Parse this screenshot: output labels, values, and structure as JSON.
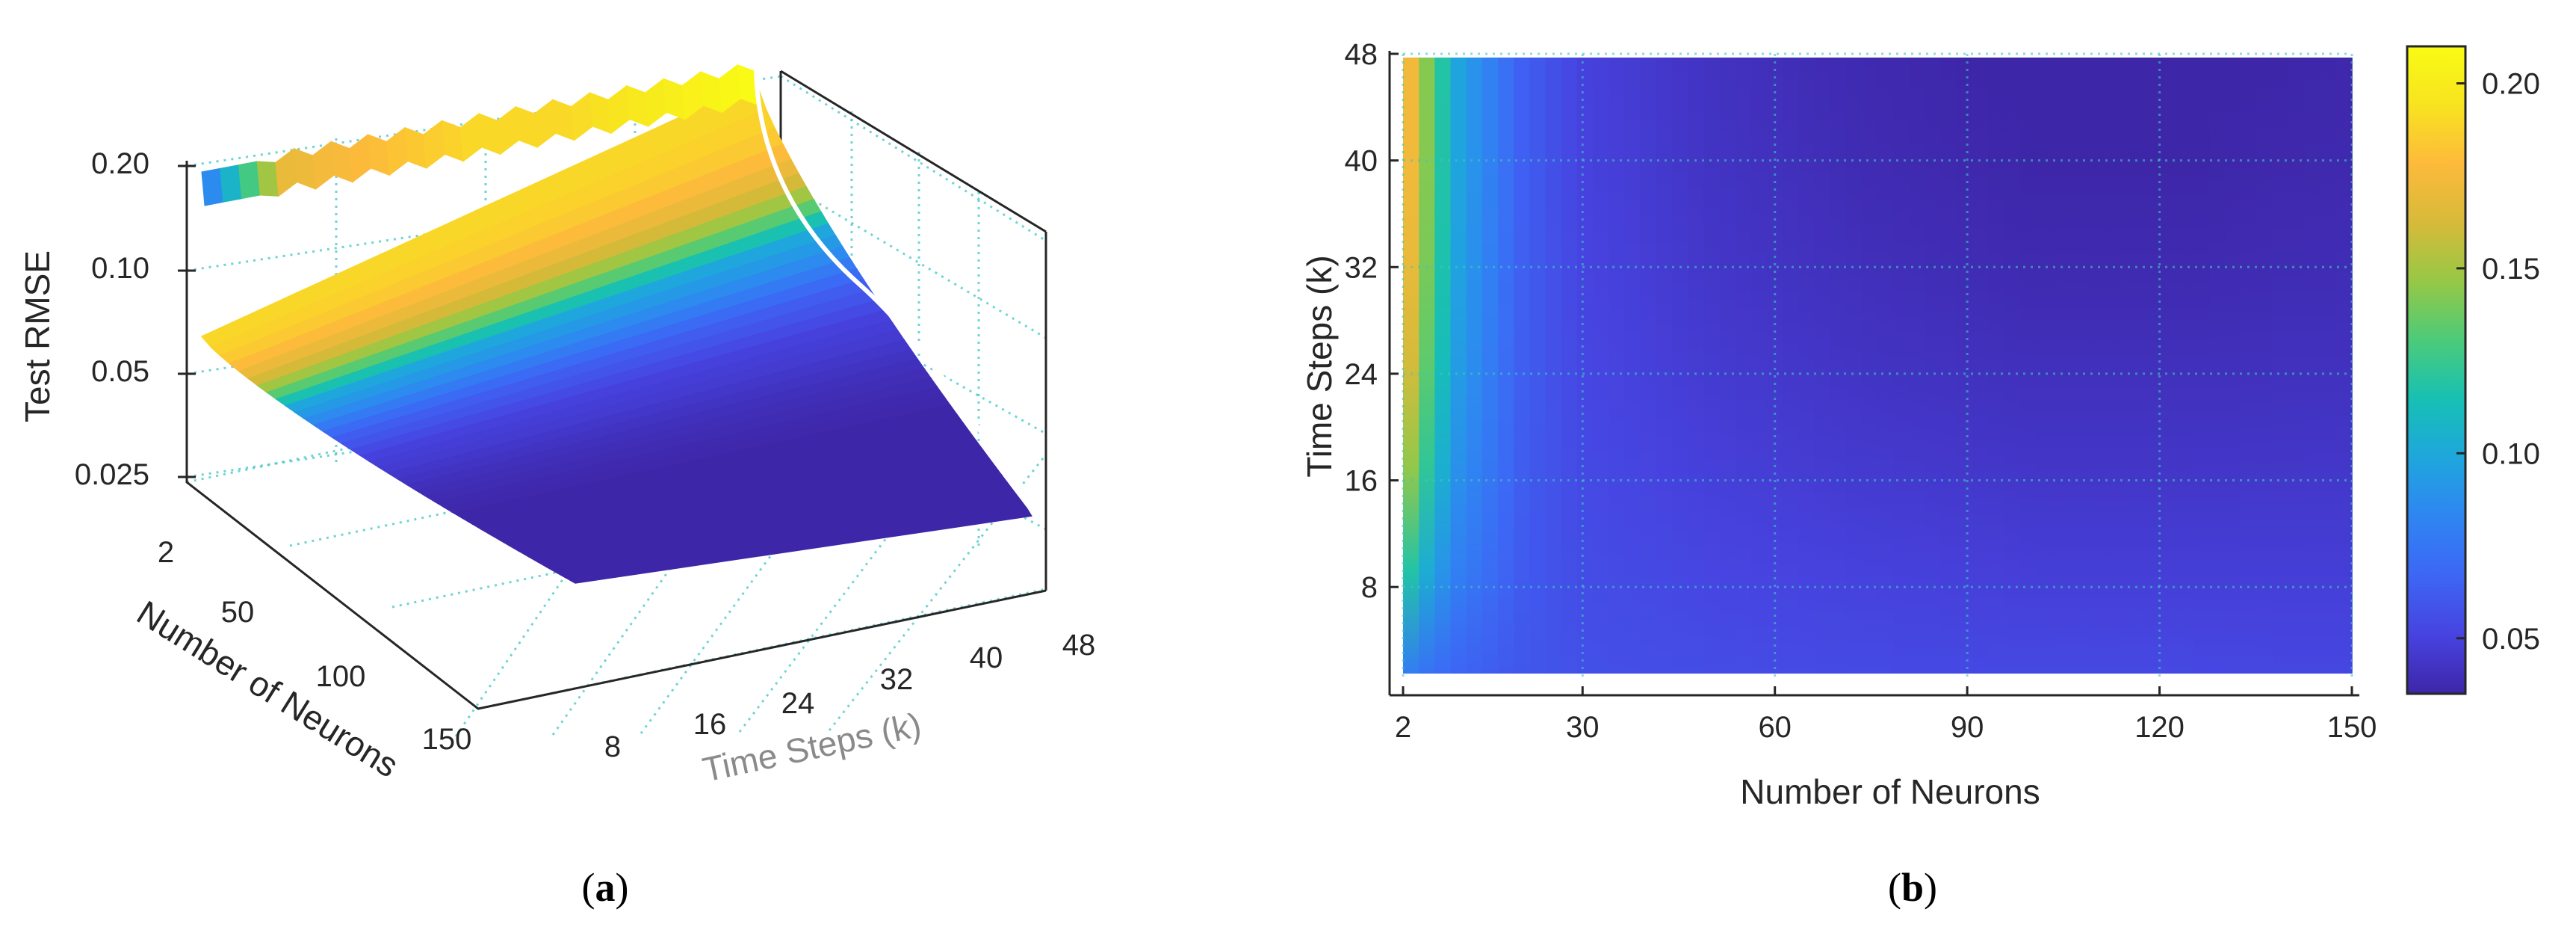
{
  "colors": {
    "colormap": [
      "#3e26a8",
      "#4743e0",
      "#3d66f5",
      "#2f85f2",
      "#1fa6dd",
      "#17c0b4",
      "#4bcb7a",
      "#96c846",
      "#d7ba3a",
      "#fdba3b",
      "#f8e320",
      "#f9fb14"
    ],
    "grid": "#3fc6c6",
    "axis": "#262626"
  },
  "chart_data": [
    {
      "panel": "a",
      "caption": "a",
      "type": "surface3d",
      "xlabel": "Number of Neurons",
      "ylabel": "Time Steps (k)",
      "zlabel": "Test RMSE",
      "x_ticks": [
        "2",
        "50",
        "100",
        "150"
      ],
      "y_ticks": [
        "8",
        "16",
        "24",
        "32",
        "40",
        "48"
      ],
      "z_ticks": [
        "0.20",
        "0.10",
        "0.05",
        "0.025"
      ],
      "z_scale": "log",
      "xlim": [
        2,
        150
      ],
      "ylim": [
        1,
        48
      ],
      "zlim": [
        0.02,
        0.21
      ],
      "grid": true,
      "surface_profile": {
        "neurons": [
          2,
          5,
          10,
          20,
          30,
          50,
          75,
          100,
          125,
          150
        ],
        "rmse_along_neurons_at_48_steps": [
          0.19,
          0.16,
          0.1,
          0.065,
          0.05,
          0.04,
          0.034,
          0.031,
          0.03,
          0.03
        ],
        "rmse_along_steps_at_2_neurons": [
          0.075,
          0.17,
          0.18,
          0.19,
          0.19,
          0.2,
          0.21
        ]
      }
    },
    {
      "panel": "b",
      "caption": "b",
      "type": "heatmap",
      "xlabel": "Number of Neurons",
      "ylabel": "Time Steps (k)",
      "x_ticks": [
        "2",
        "30",
        "60",
        "90",
        "120",
        "150"
      ],
      "y_ticks": [
        "8",
        "16",
        "24",
        "32",
        "40",
        "48"
      ],
      "xlim": [
        2,
        150
      ],
      "ylim": [
        1,
        48
      ],
      "colorbar_ticks": [
        "0.20",
        "0.15",
        "0.10",
        "0.05"
      ],
      "clim": [
        0.035,
        0.21
      ],
      "grid": true,
      "field_samples": {
        "neurons": [
          2,
          5,
          10,
          20,
          30,
          50,
          75,
          100,
          125,
          150
        ],
        "rmse_at_48_steps": [
          0.19,
          0.15,
          0.1,
          0.065,
          0.05,
          0.042,
          0.037,
          0.034,
          0.034,
          0.036
        ],
        "rmse_at_1_step": [
          0.075,
          0.07,
          0.065,
          0.06,
          0.057,
          0.055,
          0.054,
          0.053,
          0.053,
          0.052
        ]
      }
    }
  ]
}
